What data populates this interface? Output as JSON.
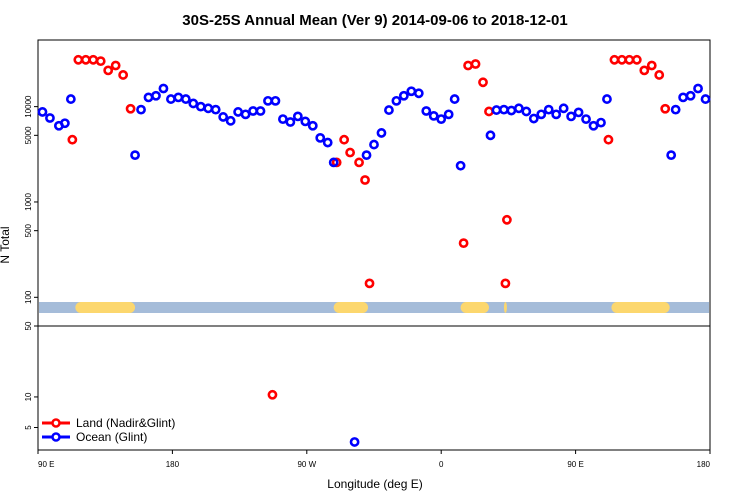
{
  "chart_data": {
    "type": "scatter",
    "title": "30S-25S Annual Mean (Ver 9)   2014-09-06 to 2018-12-01",
    "xlabel": "Longitude (deg E)",
    "ylabel": "N Total",
    "x_ticks": [
      {
        "value": 90,
        "label": "90 E"
      },
      {
        "value": 180,
        "label": "180"
      },
      {
        "value": 270,
        "label": "90 W"
      },
      {
        "value": 360,
        "label": "0"
      },
      {
        "value": 450,
        "label": "90 E"
      },
      {
        "value": 540,
        "label": "180"
      }
    ],
    "xlim": [
      90,
      540
    ],
    "upper_panel": {
      "scale": "log",
      "ylim": [
        50,
        50000
      ],
      "y_ticks": [
        {
          "value": 100,
          "label": "100"
        },
        {
          "value": 500,
          "label": "500"
        },
        {
          "value": 1000,
          "label": "1000"
        },
        {
          "value": 5000,
          "label": "5000"
        },
        {
          "value": 10000,
          "label": "10000"
        }
      ]
    },
    "lower_panel": {
      "scale": "log",
      "ylim": [
        3,
        50
      ],
      "y_ticks": [
        {
          "value": 5,
          "label": "5"
        },
        {
          "value": 10,
          "label": "10"
        },
        {
          "value": 50,
          "label": "50"
        }
      ]
    },
    "series": [
      {
        "name": "Land (Nadir&Glint)",
        "color": "#ff0000",
        "points": [
          {
            "x": 113,
            "y": 4500
          },
          {
            "x": 117,
            "y": 31000
          },
          {
            "x": 122,
            "y": 31000
          },
          {
            "x": 127,
            "y": 31000
          },
          {
            "x": 132,
            "y": 30000
          },
          {
            "x": 137,
            "y": 24000
          },
          {
            "x": 142,
            "y": 27000
          },
          {
            "x": 147,
            "y": 21500
          },
          {
            "x": 152,
            "y": 9500
          },
          {
            "x": 247,
            "y": 10.5
          },
          {
            "x": 290,
            "y": 2600
          },
          {
            "x": 295,
            "y": 4500
          },
          {
            "x": 299,
            "y": 3300
          },
          {
            "x": 305,
            "y": 2600
          },
          {
            "x": 309,
            "y": 1700
          },
          {
            "x": 312,
            "y": 140
          },
          {
            "x": 375,
            "y": 370
          },
          {
            "x": 378,
            "y": 27000
          },
          {
            "x": 383,
            "y": 28000
          },
          {
            "x": 388,
            "y": 18000
          },
          {
            "x": 392,
            "y": 8900
          },
          {
            "x": 403,
            "y": 140
          },
          {
            "x": 404,
            "y": 650
          },
          {
            "x": 472,
            "y": 4500
          },
          {
            "x": 476,
            "y": 31000
          },
          {
            "x": 481,
            "y": 31000
          },
          {
            "x": 486,
            "y": 31000
          },
          {
            "x": 491,
            "y": 31000
          },
          {
            "x": 496,
            "y": 24000
          },
          {
            "x": 501,
            "y": 27000
          },
          {
            "x": 506,
            "y": 21500
          },
          {
            "x": 510,
            "y": 9500
          }
        ]
      },
      {
        "name": "Ocean (Glint)",
        "color": "#0000ff",
        "points": [
          {
            "x": 93,
            "y": 8800
          },
          {
            "x": 98,
            "y": 7600
          },
          {
            "x": 104,
            "y": 6300
          },
          {
            "x": 108,
            "y": 6700
          },
          {
            "x": 112,
            "y": 12000
          },
          {
            "x": 155,
            "y": 3100
          },
          {
            "x": 159,
            "y": 9300
          },
          {
            "x": 164,
            "y": 12500
          },
          {
            "x": 169,
            "y": 13000
          },
          {
            "x": 174,
            "y": 15500
          },
          {
            "x": 179,
            "y": 12000
          },
          {
            "x": 184,
            "y": 12500
          },
          {
            "x": 189,
            "y": 12000
          },
          {
            "x": 194,
            "y": 10800
          },
          {
            "x": 199,
            "y": 10000
          },
          {
            "x": 204,
            "y": 9600
          },
          {
            "x": 209,
            "y": 9300
          },
          {
            "x": 214,
            "y": 7800
          },
          {
            "x": 219,
            "y": 7100
          },
          {
            "x": 224,
            "y": 8800
          },
          {
            "x": 229,
            "y": 8300
          },
          {
            "x": 234,
            "y": 9000
          },
          {
            "x": 239,
            "y": 9000
          },
          {
            "x": 244,
            "y": 11500
          },
          {
            "x": 249,
            "y": 11500
          },
          {
            "x": 254,
            "y": 7400
          },
          {
            "x": 259,
            "y": 6900
          },
          {
            "x": 264,
            "y": 7900
          },
          {
            "x": 269,
            "y": 7000
          },
          {
            "x": 274,
            "y": 6300
          },
          {
            "x": 279,
            "y": 4700
          },
          {
            "x": 284,
            "y": 4200
          },
          {
            "x": 288,
            "y": 2600
          },
          {
            "x": 302,
            "y": 3.6
          },
          {
            "x": 310,
            "y": 3100
          },
          {
            "x": 315,
            "y": 4000
          },
          {
            "x": 320,
            "y": 5300
          },
          {
            "x": 325,
            "y": 9200
          },
          {
            "x": 330,
            "y": 11500
          },
          {
            "x": 335,
            "y": 13000
          },
          {
            "x": 340,
            "y": 14500
          },
          {
            "x": 345,
            "y": 13800
          },
          {
            "x": 350,
            "y": 9000
          },
          {
            "x": 355,
            "y": 8000
          },
          {
            "x": 360,
            "y": 7400
          },
          {
            "x": 365,
            "y": 8300
          },
          {
            "x": 369,
            "y": 12000
          },
          {
            "x": 373,
            "y": 2400
          },
          {
            "x": 393,
            "y": 5000
          },
          {
            "x": 397,
            "y": 9200
          },
          {
            "x": 402,
            "y": 9300
          },
          {
            "x": 407,
            "y": 9100
          },
          {
            "x": 412,
            "y": 9600
          },
          {
            "x": 417,
            "y": 8900
          },
          {
            "x": 422,
            "y": 7500
          },
          {
            "x": 427,
            "y": 8300
          },
          {
            "x": 432,
            "y": 9300
          },
          {
            "x": 437,
            "y": 8300
          },
          {
            "x": 442,
            "y": 9600
          },
          {
            "x": 447,
            "y": 7900
          },
          {
            "x": 452,
            "y": 8700
          },
          {
            "x": 457,
            "y": 7400
          },
          {
            "x": 462,
            "y": 6300
          },
          {
            "x": 467,
            "y": 6800
          },
          {
            "x": 471,
            "y": 12000
          },
          {
            "x": 514,
            "y": 3100
          },
          {
            "x": 517,
            "y": 9300
          },
          {
            "x": 522,
            "y": 12500
          },
          {
            "x": 527,
            "y": 13000
          },
          {
            "x": 532,
            "y": 15500
          },
          {
            "x": 537,
            "y": 12000
          }
        ]
      }
    ],
    "surface_bar": {
      "colors": {
        "ocean": "#a5bcd9",
        "land": "#fcd76e"
      },
      "land_segments": [
        [
          115,
          155
        ],
        [
          288,
          311
        ],
        [
          373,
          392
        ],
        [
          402,
          404
        ],
        [
          474,
          513
        ]
      ]
    }
  }
}
